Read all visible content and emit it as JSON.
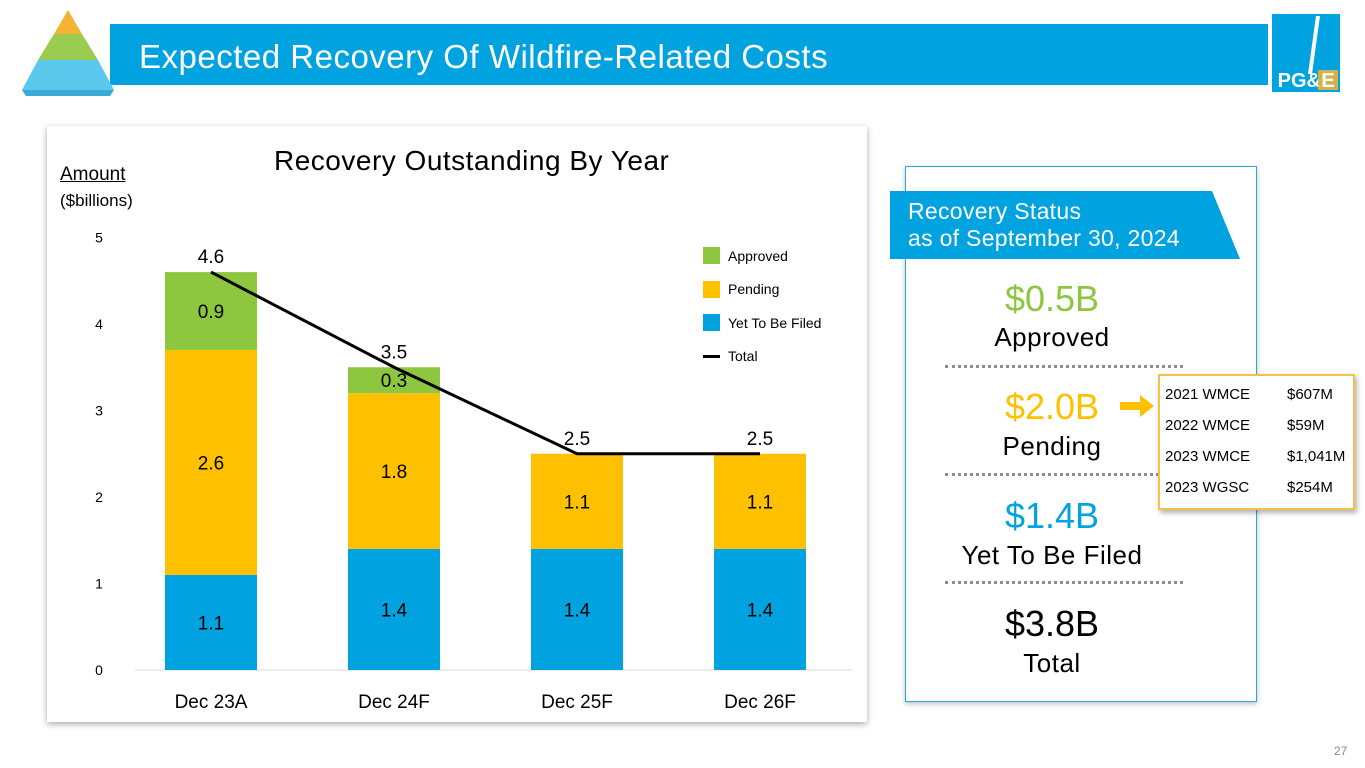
{
  "header": {
    "title": "Expected Recovery Of Wildfire-Related Costs",
    "logo_text": "PG&E"
  },
  "colors": {
    "title_bar": "#00A3E0",
    "approved": "#8DC63F",
    "pending": "#FFC000",
    "yet_to_be_filed": "#00A3E0",
    "total_line": "#000000"
  },
  "chart_data": {
    "type": "bar",
    "stacked": true,
    "title": "Recovery Outstanding By Year",
    "ylabel": "Amount",
    "yunit": "($billions)",
    "categories": [
      "Dec 23A",
      "Dec 24F",
      "Dec 25F",
      "Dec 26F"
    ],
    "series": [
      {
        "name": "Yet To Be Filed",
        "values": [
          1.1,
          1.4,
          1.4,
          1.4
        ],
        "labels": [
          "1.1",
          "1.4",
          "1.4",
          "1.4"
        ]
      },
      {
        "name": "Pending",
        "values": [
          2.6,
          1.8,
          1.1,
          1.1
        ],
        "labels": [
          "2.6",
          "1.8",
          "1.1",
          "1.1"
        ]
      },
      {
        "name": "Approved",
        "values": [
          0.9,
          0.3,
          0,
          0
        ],
        "labels": [
          "0.9",
          "0.3",
          "",
          ""
        ]
      }
    ],
    "total": {
      "name": "Total",
      "values": [
        4.6,
        3.5,
        2.5,
        2.5
      ],
      "labels": [
        "4.6",
        "3.5",
        "2.5",
        "2.5"
      ]
    },
    "ylim": [
      0,
      5
    ],
    "yticks": [
      "0",
      "1",
      "2",
      "3",
      "4",
      "5"
    ],
    "legend": [
      "Approved",
      "Pending",
      "Yet To Be Filed",
      "Total"
    ],
    "legend_position": "top-right"
  },
  "status": {
    "banner_line1": "Recovery Status",
    "banner_line2": "as of September 30, 2024",
    "approved_value": "$0.5B",
    "approved_label": "Approved",
    "pending_value": "$2.0B",
    "pending_label": "Pending",
    "yet_value": "$1.4B",
    "yet_label": "Yet To Be Filed",
    "total_value": "$3.8B",
    "total_label": "Total"
  },
  "pending_detail": [
    {
      "name": "2021 WMCE",
      "amount": "$607M"
    },
    {
      "name": "2022 WMCE",
      "amount": "$59M"
    },
    {
      "name": "2023 WMCE",
      "amount": "$1,041M"
    },
    {
      "name": "2023 WGSC",
      "amount": "$254M"
    }
  ],
  "page_number": "27"
}
